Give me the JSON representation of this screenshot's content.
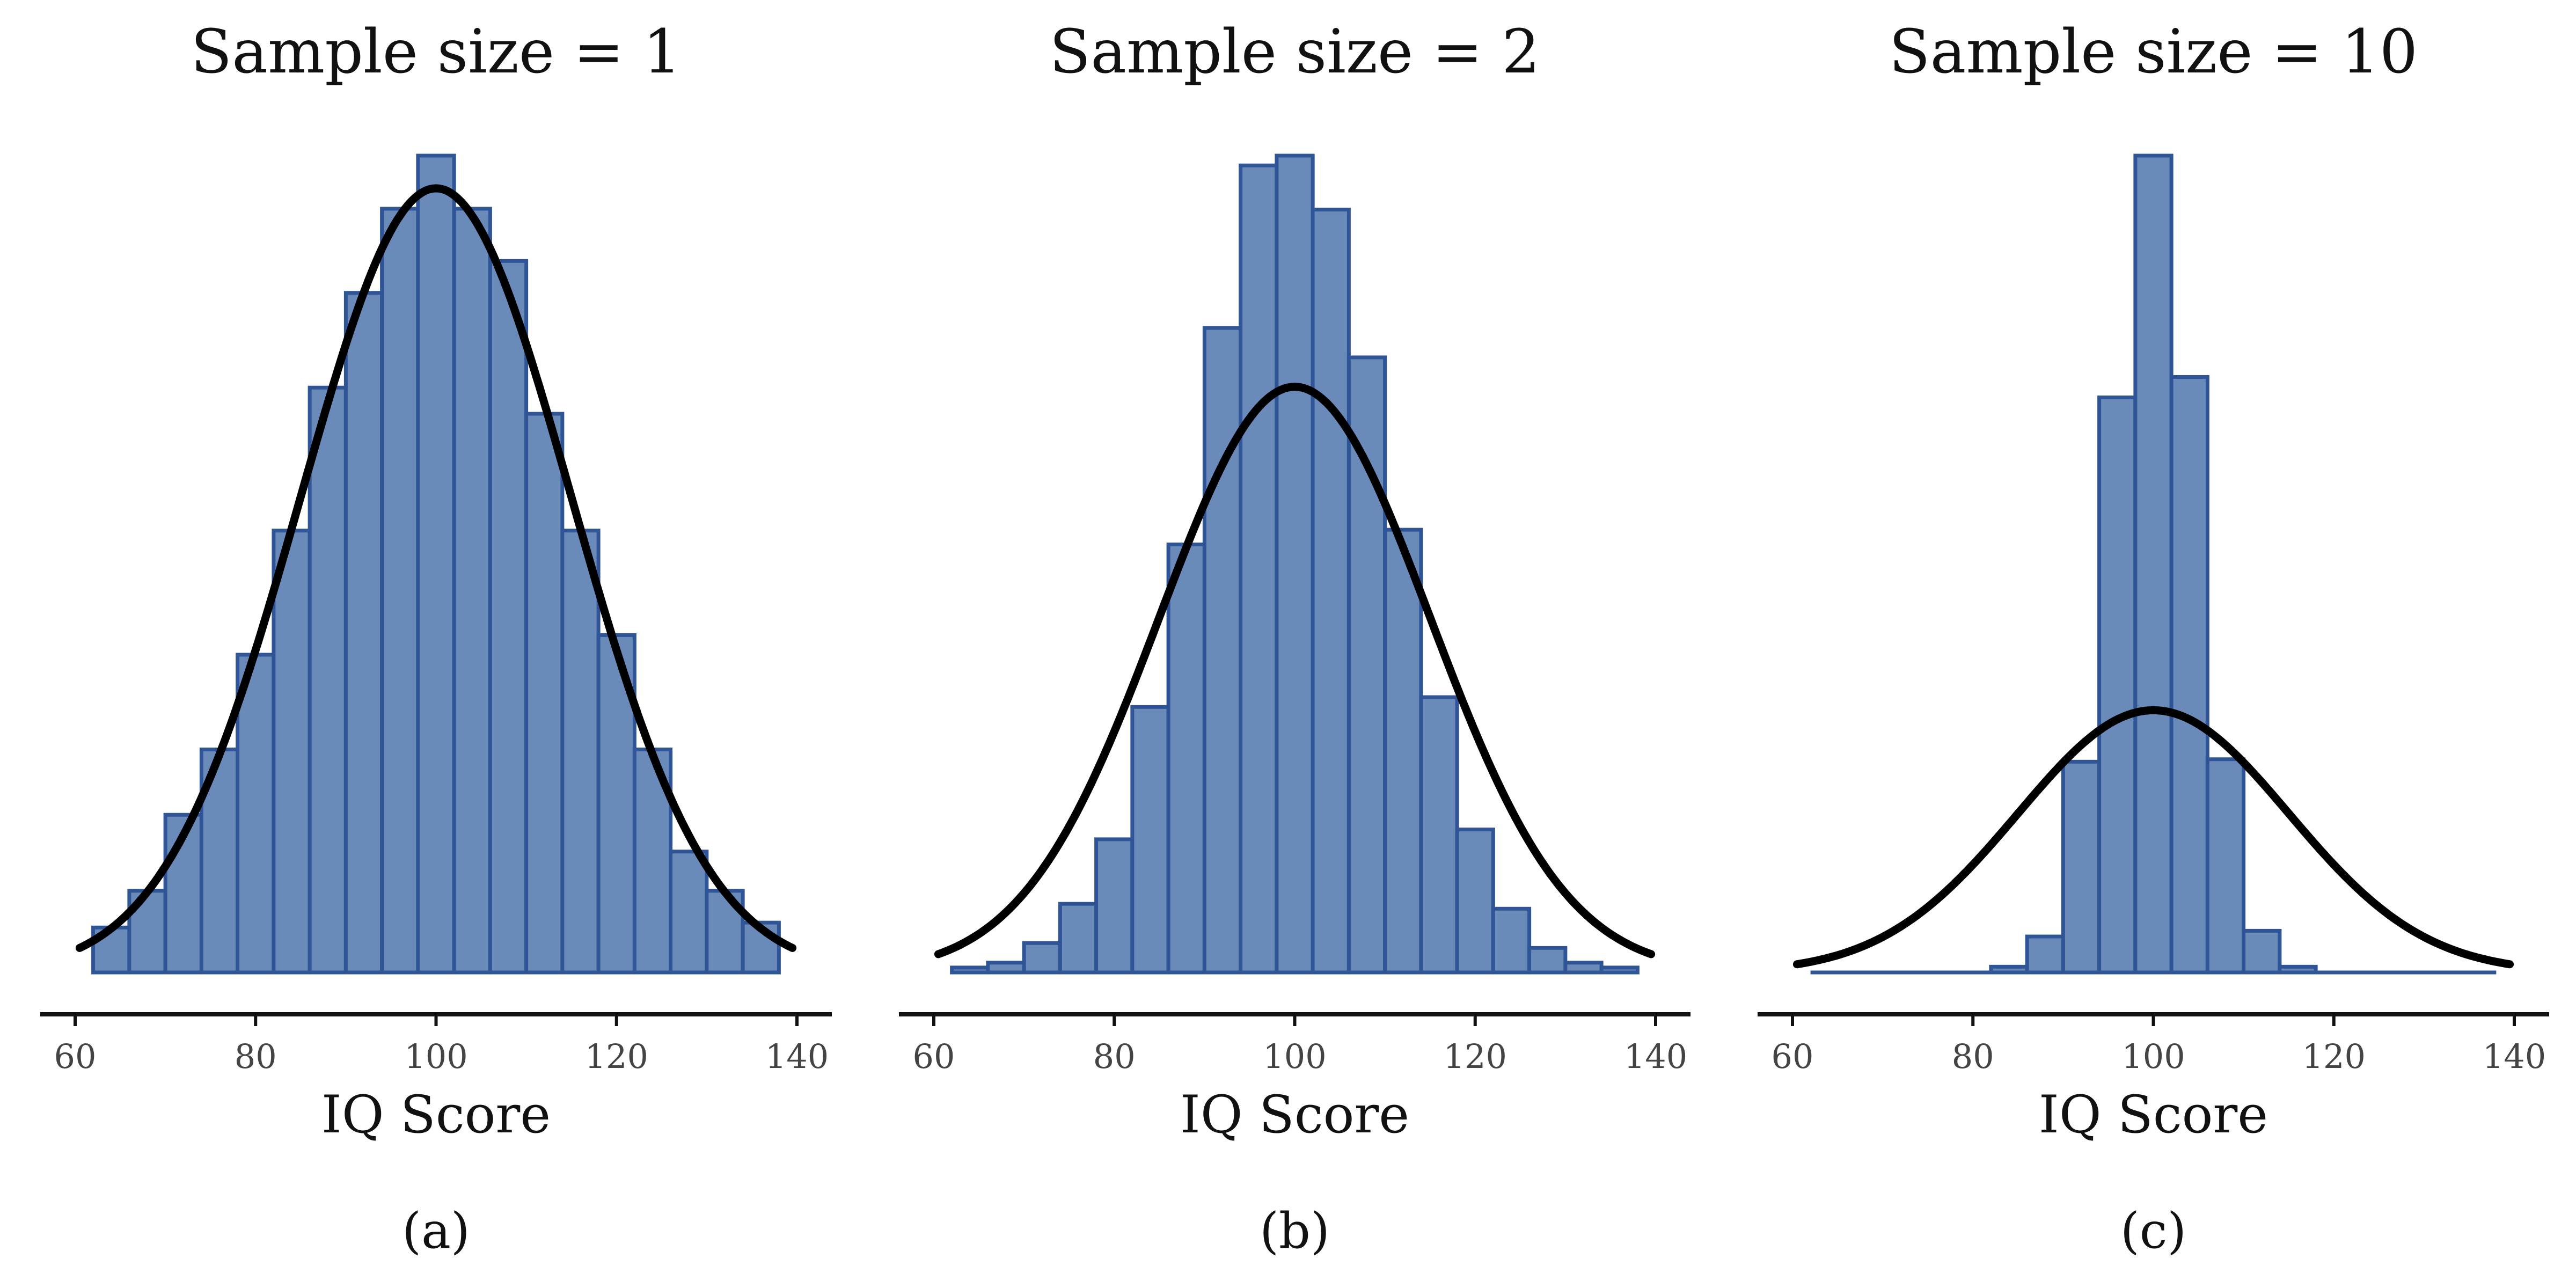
{
  "colors": {
    "bar_fill": "#6a8aba",
    "bar_edge": "#2f5597",
    "curve": "#000000"
  },
  "chart_data": [
    {
      "type": "bar",
      "title": "Sample size = 1",
      "xlabel": "IQ Score",
      "caption": "(a)",
      "xlim": [
        60,
        140
      ],
      "xticks": [
        60,
        80,
        100,
        120,
        140
      ],
      "bin_edges": [
        62,
        66,
        70,
        74,
        78,
        82,
        86,
        90,
        94,
        98,
        102,
        106,
        110,
        114,
        118,
        122,
        126,
        130,
        134,
        138
      ],
      "counts": [
        0.055,
        0.1,
        0.193,
        0.273,
        0.389,
        0.541,
        0.716,
        0.832,
        0.935,
        1.0,
        0.935,
        0.871,
        0.684,
        0.541,
        0.413,
        0.273,
        0.148,
        0.1,
        0.061
      ],
      "normal_curve": {
        "mean": 100,
        "sd": 15,
        "peak": 0.96
      }
    },
    {
      "type": "bar",
      "title": "Sample size = 2",
      "xlabel": "IQ Score",
      "caption": "(b)",
      "xlim": [
        60,
        140
      ],
      "xticks": [
        60,
        80,
        100,
        120,
        140
      ],
      "bin_edges": [
        62,
        66,
        70,
        74,
        78,
        82,
        86,
        90,
        94,
        98,
        102,
        106,
        110,
        114,
        118,
        122,
        126,
        130,
        134,
        138
      ],
      "counts": [
        0.006,
        0.012,
        0.036,
        0.084,
        0.163,
        0.325,
        0.524,
        0.789,
        0.988,
        1.0,
        0.934,
        0.753,
        0.542,
        0.337,
        0.175,
        0.078,
        0.03,
        0.012,
        0.006
      ],
      "normal_curve": {
        "mean": 100,
        "sd": 15,
        "peak": 0.717
      }
    },
    {
      "type": "bar",
      "title": "Sample size = 10",
      "xlabel": "IQ Score",
      "caption": "(c)",
      "xlim": [
        60,
        140
      ],
      "xticks": [
        60,
        80,
        100,
        120,
        140
      ],
      "bin_edges": [
        62,
        66,
        70,
        74,
        78,
        82,
        86,
        90,
        94,
        98,
        102,
        106,
        110,
        114,
        118,
        122,
        126,
        130,
        134,
        138
      ],
      "counts": [
        0.0,
        0.0,
        0.0,
        0.0,
        0.0,
        0.007,
        0.044,
        0.258,
        0.704,
        1.0,
        0.729,
        0.261,
        0.051,
        0.007,
        0.0,
        0.0,
        0.0,
        0.0,
        0.0
      ],
      "normal_curve": {
        "mean": 100,
        "sd": 15,
        "peak": 0.321
      }
    }
  ]
}
